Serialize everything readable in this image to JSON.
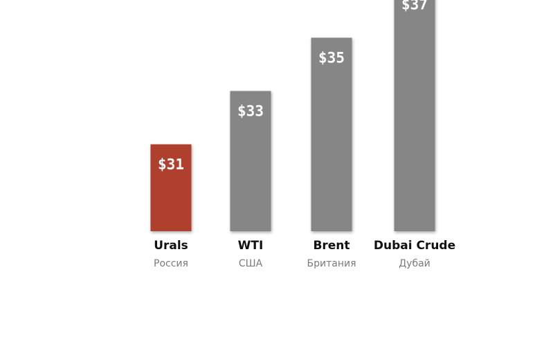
{
  "chart_data": {
    "type": "bar",
    "categories": [
      "Urals",
      "WTI",
      "Brent",
      "Dubai Crude"
    ],
    "subtitles": [
      "Россия",
      "США",
      "Британия",
      "Дубай"
    ],
    "values": [
      31,
      33,
      35,
      37
    ],
    "value_labels": [
      "$31",
      "$33",
      "$35",
      "$37"
    ],
    "colors": [
      "#b03f2e",
      "#868686",
      "#868686",
      "#868686"
    ],
    "highlight_color": "#b03f2e",
    "bar_color": "#868686",
    "grid": false,
    "legend": "none"
  }
}
